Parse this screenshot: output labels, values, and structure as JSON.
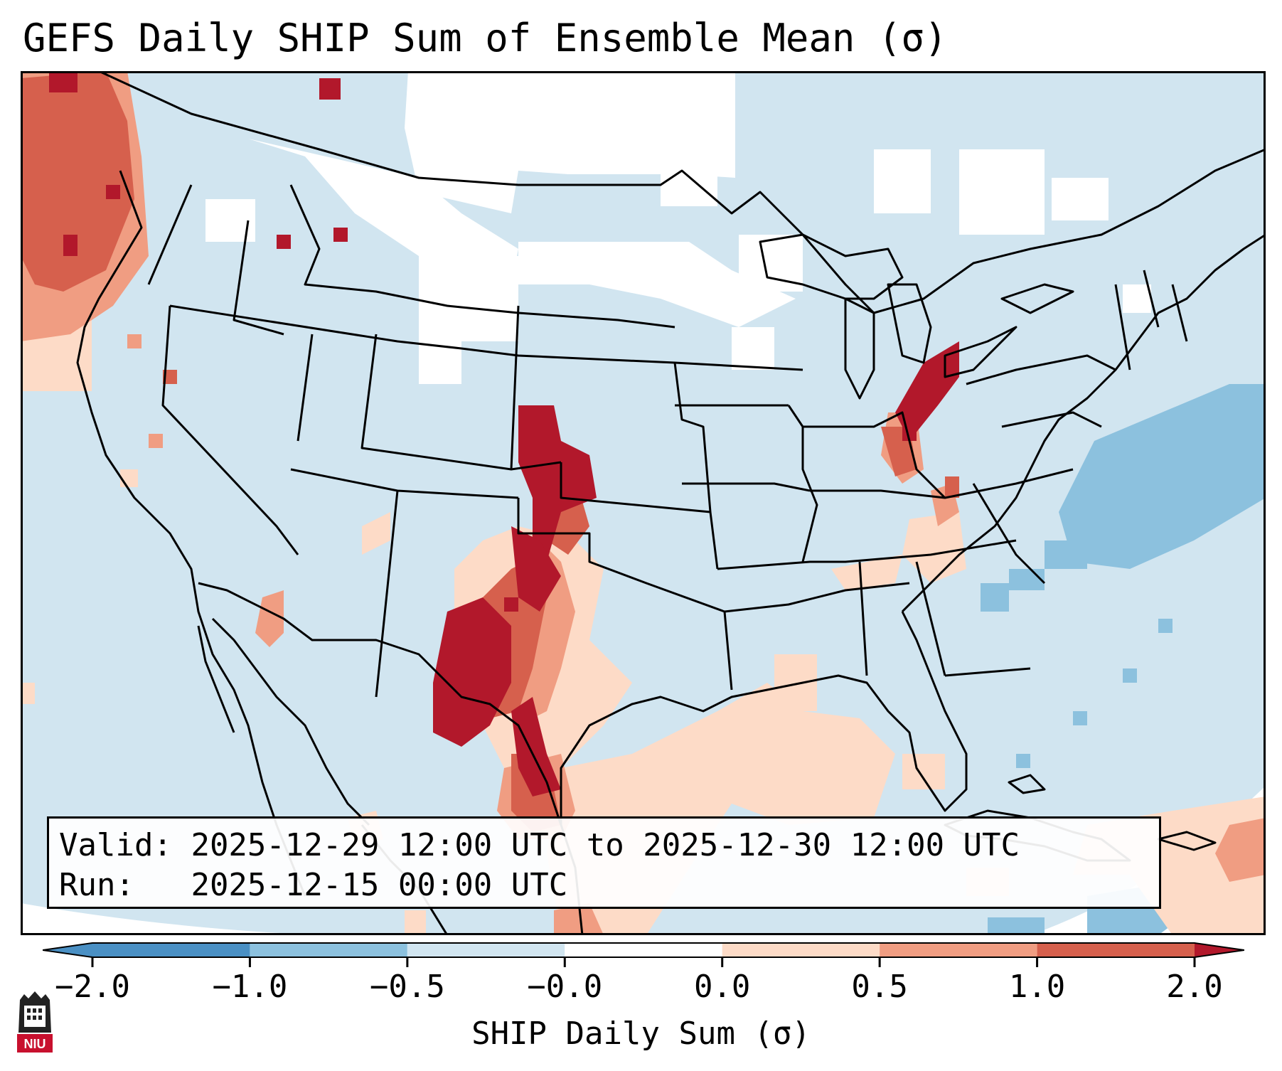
{
  "title": "GEFS Daily SHIP Sum of Ensemble Mean (σ)",
  "info": {
    "valid_label": "Valid:",
    "valid_value": "2025-12-29 12:00 UTC to 2025-12-30 12:00 UTC",
    "run_label": "Run:",
    "run_value": "2025-12-15 00:00 UTC"
  },
  "colorbar": {
    "label": "SHIP Daily Sum (σ)",
    "ticks": [
      "−2.0",
      "−1.0",
      "−0.5",
      "−0.0",
      "0.0",
      "0.5",
      "1.0",
      "2.0"
    ],
    "colors": [
      "#4a90c4",
      "#8cc1de",
      "#d1e5f0",
      "#ffffff",
      "#fddbc7",
      "#f09d82",
      "#d6604d",
      "#b2182b"
    ],
    "extend": "both"
  },
  "logo": {
    "text": "NIU",
    "color": "#c8102e"
  },
  "map": {
    "projection": "lambert-conformal",
    "region": "CONUS",
    "background_color": "#d1e5f0",
    "no_data_color": "#ffffff",
    "highlights": [
      {
        "name": "pacific-northwest-coast",
        "level": "high"
      },
      {
        "name": "eastern-colorado",
        "level": "very-high"
      },
      {
        "name": "new-mexico-west-texas",
        "level": "very-high"
      },
      {
        "name": "texas-gulf-coast",
        "level": "low-positive"
      },
      {
        "name": "indiana-ohio",
        "level": "very-high"
      },
      {
        "name": "atlantic-offshore",
        "level": "negative"
      }
    ]
  }
}
